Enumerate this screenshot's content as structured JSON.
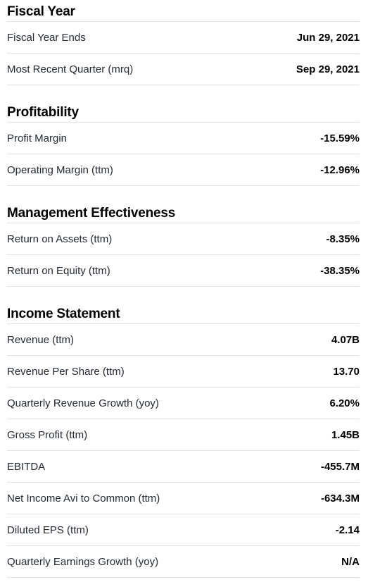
{
  "sections": [
    {
      "title": "Fiscal Year",
      "rows": [
        {
          "label": "Fiscal Year Ends",
          "value": "Jun 29, 2021"
        },
        {
          "label": "Most Recent Quarter (mrq)",
          "value": "Sep 29, 2021"
        }
      ]
    },
    {
      "title": "Profitability",
      "rows": [
        {
          "label": "Profit Margin",
          "value": "-15.59%"
        },
        {
          "label": "Operating Margin (ttm)",
          "value": "-12.96%"
        }
      ]
    },
    {
      "title": "Management Effectiveness",
      "rows": [
        {
          "label": "Return on Assets (ttm)",
          "value": "-8.35%"
        },
        {
          "label": "Return on Equity (ttm)",
          "value": "-38.35%"
        }
      ]
    },
    {
      "title": "Income Statement",
      "rows": [
        {
          "label": "Revenue (ttm)",
          "value": "4.07B"
        },
        {
          "label": "Revenue Per Share (ttm)",
          "value": "13.70"
        },
        {
          "label": "Quarterly Revenue Growth (yoy)",
          "value": "6.20%"
        },
        {
          "label": "Gross Profit (ttm)",
          "value": "1.45B"
        },
        {
          "label": "EBITDA",
          "value": "-455.7M"
        },
        {
          "label": "Net Income Avi to Common (ttm)",
          "value": "-634.3M"
        },
        {
          "label": "Diluted EPS (ttm)",
          "value": "-2.14"
        },
        {
          "label": "Quarterly Earnings Growth (yoy)",
          "value": "N/A"
        }
      ]
    }
  ]
}
